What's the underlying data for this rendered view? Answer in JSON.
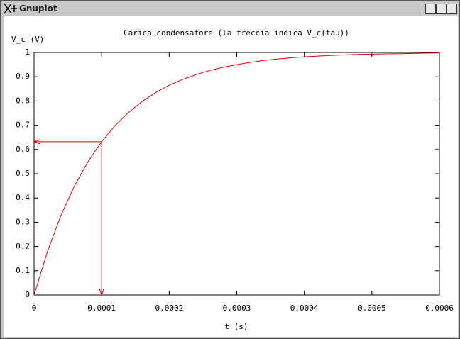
{
  "window": {
    "title": "Gnuplot"
  },
  "chart_data": {
    "type": "line",
    "title": "Carica condensatore (la freccia indica V_c(tau))",
    "xlabel": "t (s)",
    "ylabel": "V_c (V)",
    "x": [
      0,
      2e-05,
      4e-05,
      6e-05,
      8e-05,
      0.0001,
      0.00012,
      0.00014,
      0.00016,
      0.00018,
      0.0002,
      0.00022,
      0.00024,
      0.00026,
      0.00028,
      0.0003,
      0.00032,
      0.00034,
      0.00036,
      0.00038,
      0.0004,
      0.00042,
      0.00044,
      0.00046,
      0.00048,
      0.0005,
      0.00052,
      0.00054,
      0.00056,
      0.00058,
      0.0006
    ],
    "series": [
      {
        "color": "#e00000",
        "values": [
          0,
          0.181,
          0.33,
          0.451,
          0.551,
          0.632,
          0.699,
          0.753,
          0.798,
          0.835,
          0.865,
          0.889,
          0.909,
          0.926,
          0.939,
          0.95,
          0.959,
          0.967,
          0.973,
          0.978,
          0.982,
          0.985,
          0.988,
          0.99,
          0.992,
          0.993,
          0.994,
          0.995,
          0.996,
          0.997,
          0.998
        ]
      }
    ],
    "arrows": [
      {
        "from": [
          0.0001,
          0.632
        ],
        "to": [
          0,
          0.632
        ]
      },
      {
        "from": [
          0.0001,
          0.632
        ],
        "to": [
          0.0001,
          0
        ]
      }
    ],
    "xlim": [
      0,
      0.0006
    ],
    "xticks": [
      0,
      0.0001,
      0.0002,
      0.0003,
      0.0004,
      0.0005,
      0.0006
    ],
    "ylim": [
      0,
      1
    ],
    "yticks": [
      0,
      0.1,
      0.2,
      0.3,
      0.4,
      0.5,
      0.6,
      0.7,
      0.8,
      0.9,
      1
    ]
  }
}
